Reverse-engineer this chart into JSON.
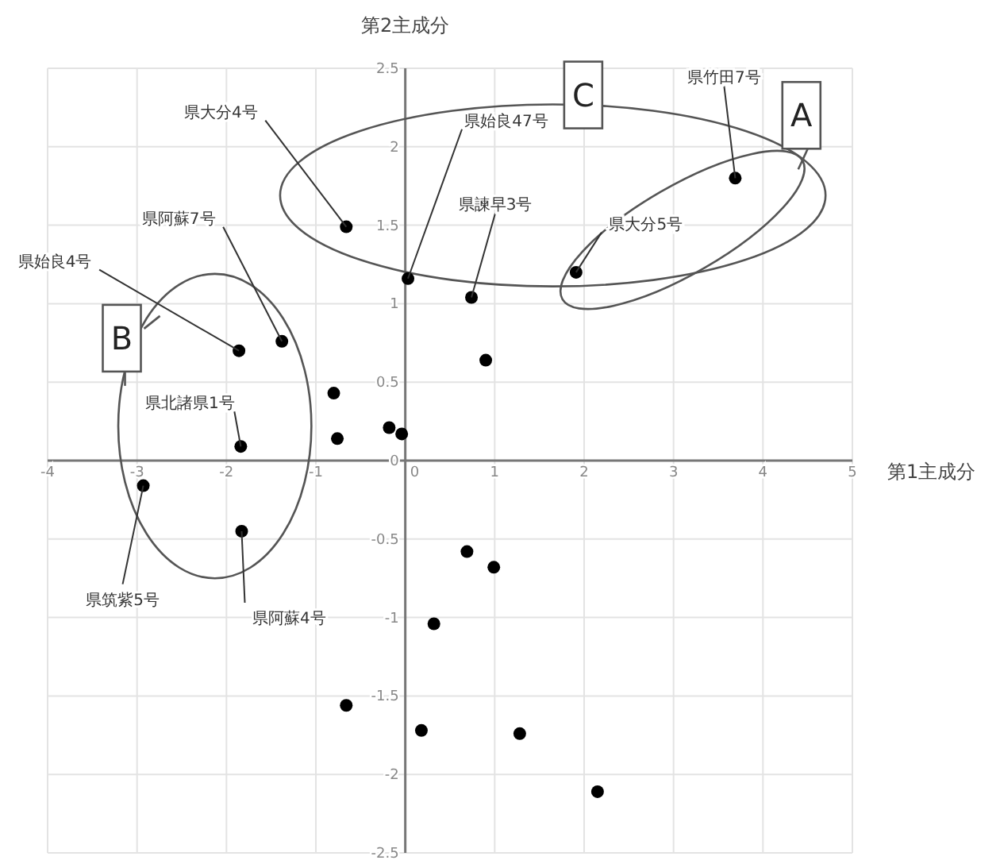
{
  "chart_data": {
    "type": "scatter",
    "xlabel": "第1主成分",
    "ylabel": "第2主成分",
    "xlim": [
      -4,
      5
    ],
    "ylim": [
      -2.5,
      2.5
    ],
    "xticks": [
      -4,
      -3,
      -2,
      -1,
      0,
      1,
      2,
      3,
      4,
      5
    ],
    "yticks": [
      -2.5,
      -2,
      -1.5,
      -1,
      -0.5,
      0,
      0.5,
      1,
      1.5,
      2,
      2.5
    ],
    "grid": true,
    "marker": "circle",
    "series": [
      {
        "color": "#000000",
        "x": [
          -0.66,
          0.03,
          0.74,
          1.91,
          3.69,
          -1.38,
          -1.86,
          -1.84,
          -2.93,
          -1.83,
          -0.8,
          -0.76,
          -0.18,
          -0.04,
          0.9,
          0.69,
          0.99,
          0.32,
          -0.66,
          0.18,
          1.28,
          2.15
        ],
        "values": [
          1.49,
          1.16,
          1.04,
          1.2,
          1.8,
          0.76,
          0.7,
          0.09,
          -0.16,
          -0.45,
          0.43,
          0.14,
          0.21,
          0.17,
          0.64,
          -0.58,
          -0.68,
          -1.04,
          -1.56,
          -1.72,
          -1.74,
          -2.11
        ]
      }
    ],
    "annotations": [
      {
        "text": "県大分4号",
        "x": -0.66,
        "y": 1.49
      },
      {
        "text": "県始良47号",
        "x": 0.03,
        "y": 1.16
      },
      {
        "text": "県諫早3号",
        "x": 0.74,
        "y": 1.04
      },
      {
        "text": "県大分5号",
        "x": 1.91,
        "y": 1.2
      },
      {
        "text": "県竹田7号",
        "x": 3.69,
        "y": 1.8
      },
      {
        "text": "県阿蘇7号",
        "x": -1.38,
        "y": 0.76
      },
      {
        "text": "県始良4号",
        "x": -1.86,
        "y": 0.7
      },
      {
        "text": "県北諸県1号",
        "x": -1.84,
        "y": 0.09
      },
      {
        "text": "県筑紫5号",
        "x": -2.93,
        "y": -0.16
      },
      {
        "text": "県阿蘇4号",
        "x": -1.83,
        "y": -0.45
      },
      {
        "text": "A",
        "x": 4.43,
        "y": 2.2
      },
      {
        "text": "B",
        "x": -3.17,
        "y": 0.78
      },
      {
        "text": "C",
        "x": 1.99,
        "y": 2.33
      }
    ]
  }
}
